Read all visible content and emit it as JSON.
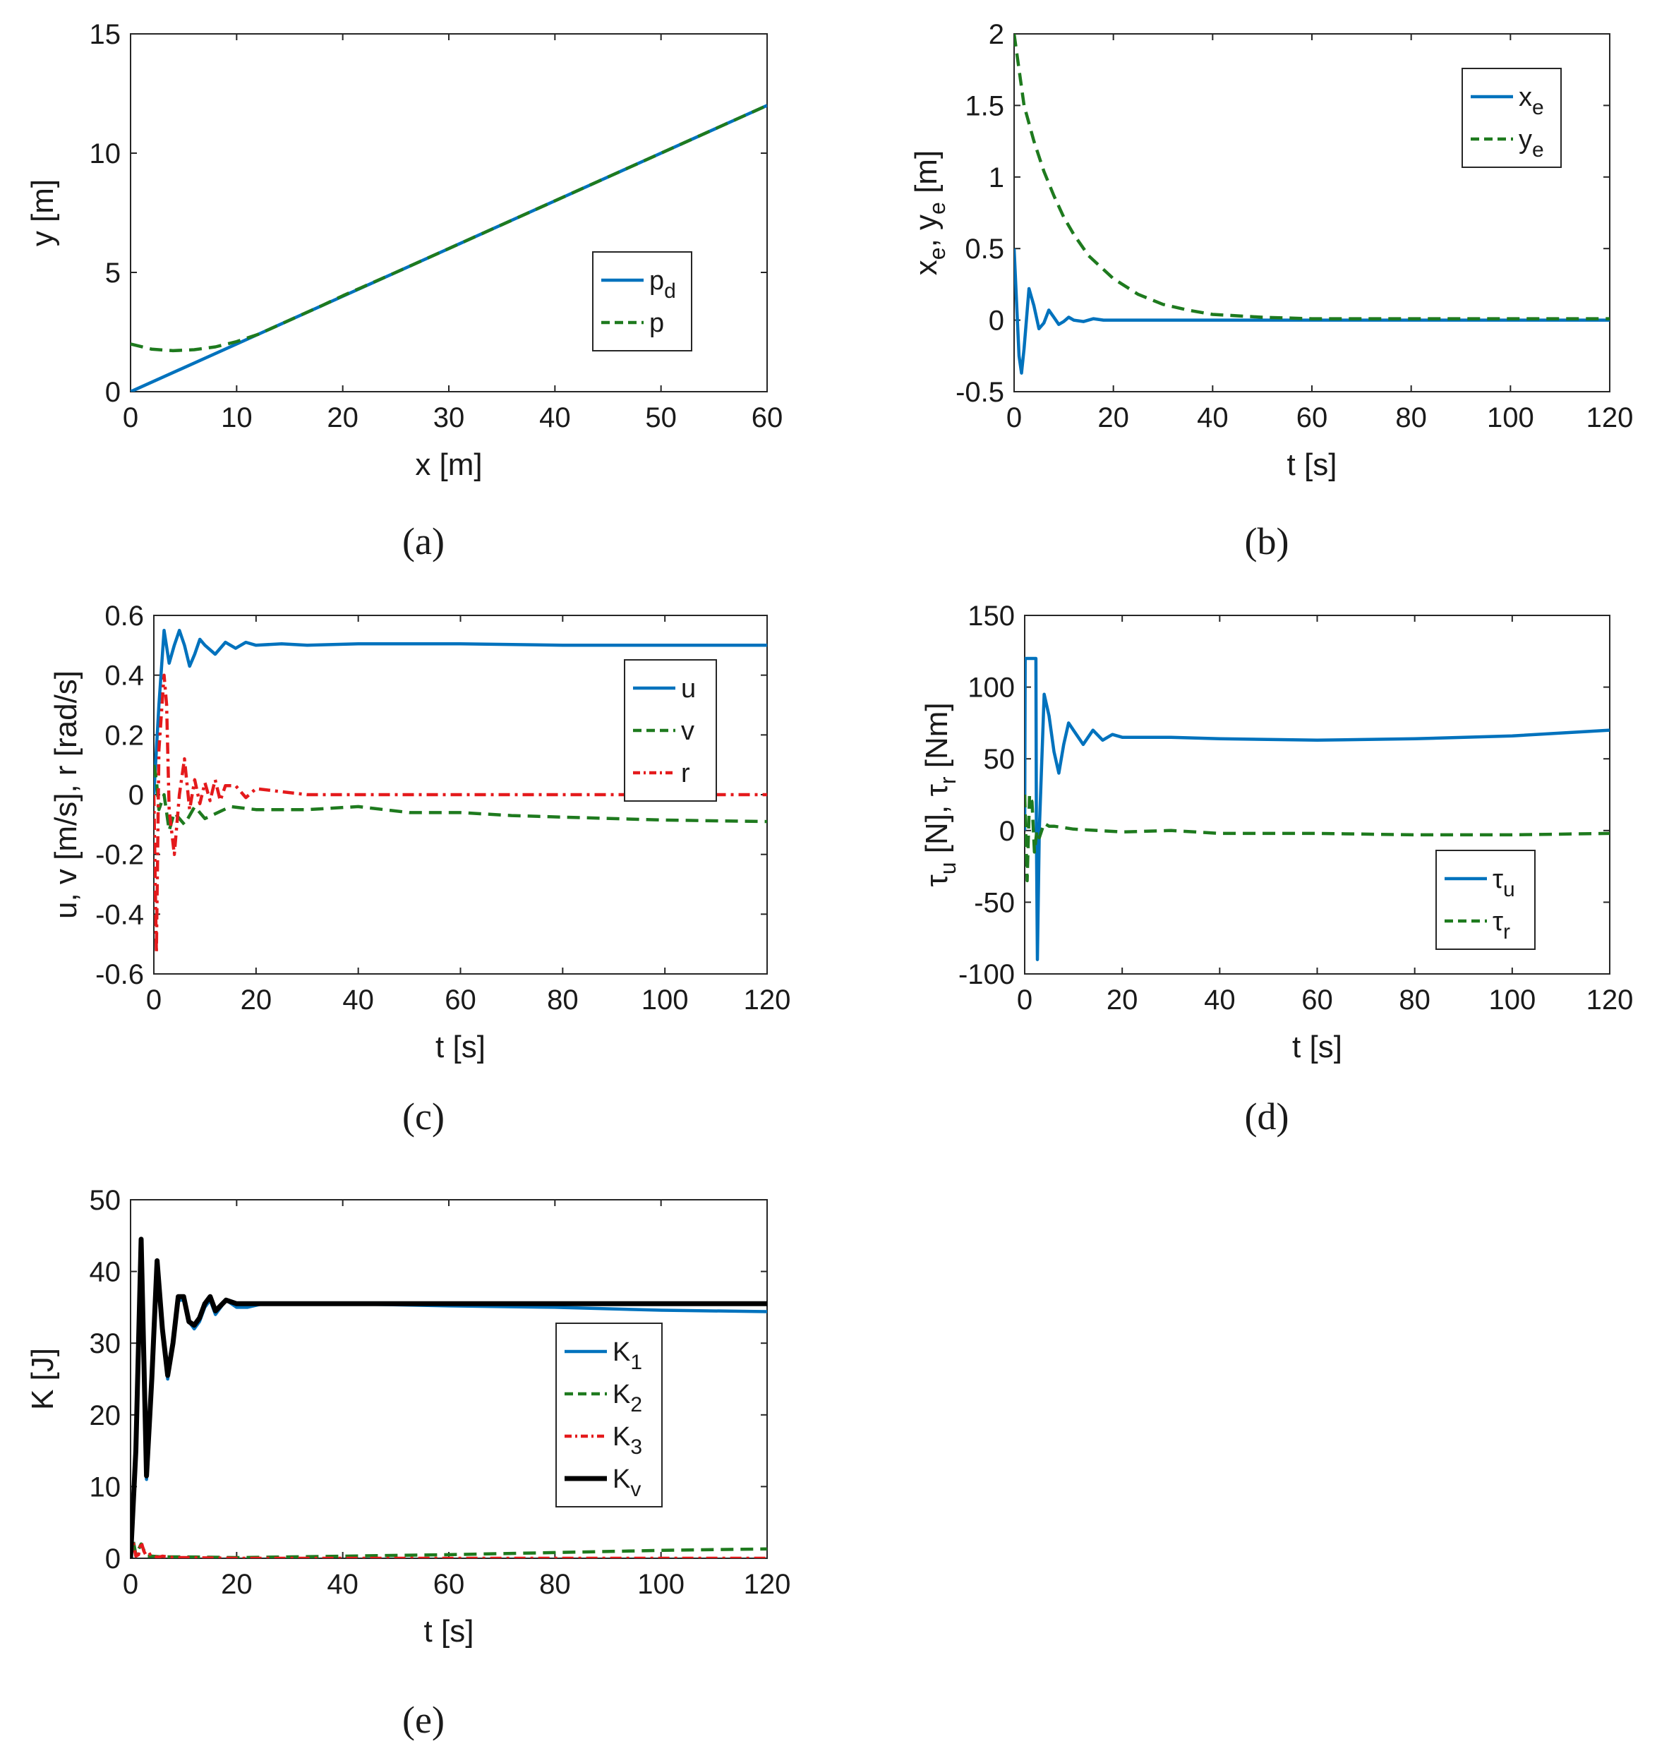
{
  "colors": {
    "blue": "#0072BD",
    "green": "#1E7A1E",
    "red": "#E41A1C",
    "black": "#000000",
    "axis": "#262626"
  },
  "chart_data": [
    {
      "id": "a",
      "type": "line",
      "caption": "(a)",
      "xlabel": "x [m]",
      "ylabel": "y [m]",
      "xlim": [
        0,
        60
      ],
      "ylim": [
        0,
        15
      ],
      "xticks": [
        0,
        10,
        20,
        30,
        40,
        50,
        60
      ],
      "yticks": [
        0,
        5,
        10,
        15
      ],
      "legend_position": "center-right",
      "series": [
        {
          "name": "p",
          "sub": "d",
          "style": "solid",
          "color": "blue",
          "x": [
            0,
            60
          ],
          "y": [
            0,
            12
          ]
        },
        {
          "name": "p",
          "sub": "",
          "style": "dashed",
          "color": "green",
          "x": [
            0,
            2,
            4,
            6,
            8,
            10,
            12,
            14,
            16,
            18,
            20,
            25,
            30,
            40,
            50,
            60
          ],
          "y": [
            2.0,
            1.78,
            1.72,
            1.76,
            1.88,
            2.1,
            2.4,
            2.8,
            3.2,
            3.6,
            4.02,
            5.0,
            6.0,
            8.0,
            10.0,
            12.0
          ]
        }
      ]
    },
    {
      "id": "b",
      "type": "line",
      "caption": "(b)",
      "xlabel": "t [s]",
      "ylabel": "x",
      "ylabel_sub": "e",
      "ylabel_mid": ", y",
      "ylabel_sub2": "e",
      "ylabel_tail": " [m]",
      "xlim": [
        0,
        120
      ],
      "ylim": [
        -0.5,
        2
      ],
      "xticks": [
        0,
        20,
        40,
        60,
        80,
        100,
        120
      ],
      "yticks": [
        -0.5,
        0,
        0.5,
        1,
        1.5,
        2
      ],
      "legend_position": "top-right",
      "series": [
        {
          "name": "x",
          "sub": "e",
          "style": "solid",
          "color": "blue",
          "x": [
            0,
            1,
            1.5,
            2,
            3,
            4,
            5,
            6,
            7,
            8,
            9,
            10,
            11,
            12,
            14,
            16,
            18,
            20,
            25,
            120
          ],
          "y": [
            0.5,
            -0.25,
            -0.37,
            -0.2,
            0.22,
            0.1,
            -0.06,
            -0.02,
            0.07,
            0.02,
            -0.03,
            -0.01,
            0.02,
            0.0,
            -0.01,
            0.01,
            0.0,
            0.0,
            0.0,
            0.0
          ]
        },
        {
          "name": "y",
          "sub": "e",
          "style": "dashed",
          "color": "green",
          "x": [
            0,
            2,
            4,
            6,
            8,
            10,
            12,
            15,
            20,
            25,
            30,
            35,
            40,
            50,
            60,
            80,
            100,
            120
          ],
          "y": [
            2.0,
            1.5,
            1.25,
            1.04,
            0.87,
            0.72,
            0.6,
            0.45,
            0.29,
            0.18,
            0.11,
            0.07,
            0.04,
            0.02,
            0.01,
            0.01,
            0.01,
            0.01
          ]
        }
      ]
    },
    {
      "id": "c",
      "type": "line",
      "caption": "(c)",
      "xlabel": "t [s]",
      "ylabel": "u, v [m/s], r [rad/s]",
      "xlim": [
        0,
        120
      ],
      "ylim": [
        -0.6,
        0.6
      ],
      "xticks": [
        0,
        20,
        40,
        60,
        80,
        100,
        120
      ],
      "yticks": [
        -0.6,
        -0.4,
        -0.2,
        0,
        0.2,
        0.4,
        0.6
      ],
      "legend_position": "upper-right",
      "series": [
        {
          "name": "u",
          "sub": "",
          "style": "solid",
          "color": "blue",
          "x": [
            0,
            1,
            2,
            3,
            4,
            5,
            6,
            7,
            8,
            9,
            10,
            12,
            14,
            16,
            18,
            20,
            25,
            30,
            40,
            60,
            80,
            100,
            120
          ],
          "y": [
            0.0,
            0.3,
            0.55,
            0.44,
            0.5,
            0.55,
            0.5,
            0.43,
            0.47,
            0.52,
            0.5,
            0.47,
            0.51,
            0.49,
            0.51,
            0.5,
            0.505,
            0.5,
            0.505,
            0.505,
            0.5,
            0.5,
            0.5
          ]
        },
        {
          "name": "v",
          "sub": "",
          "style": "dashed",
          "color": "green",
          "x": [
            0,
            0.5,
            1,
            2,
            3,
            4,
            6,
            8,
            10,
            15,
            20,
            30,
            40,
            50,
            60,
            70,
            80,
            100,
            120
          ],
          "y": [
            0.1,
            0.05,
            -0.05,
            0.0,
            -0.12,
            -0.06,
            -0.1,
            -0.04,
            -0.08,
            -0.04,
            -0.05,
            -0.05,
            -0.04,
            -0.06,
            -0.06,
            -0.07,
            -0.075,
            -0.085,
            -0.09
          ]
        },
        {
          "name": "r",
          "sub": "",
          "style": "dashdot",
          "color": "red",
          "x": [
            0,
            0.5,
            1,
            2,
            2.5,
            3,
            4,
            5,
            6,
            7,
            8,
            9,
            10,
            11,
            12,
            13,
            14,
            16,
            18,
            20,
            25,
            30,
            40,
            50,
            60,
            80,
            100,
            120
          ],
          "y": [
            0.0,
            -0.53,
            0.15,
            0.4,
            0.3,
            -0.05,
            -0.2,
            0.0,
            0.12,
            -0.05,
            0.05,
            -0.03,
            0.04,
            -0.02,
            0.05,
            -0.02,
            0.03,
            0.03,
            -0.01,
            0.02,
            0.01,
            0.0,
            0.0,
            0.0,
            0.0,
            0.0,
            0.0,
            0.0
          ]
        }
      ]
    },
    {
      "id": "d",
      "type": "line",
      "caption": "(d)",
      "xlabel": "t [s]",
      "ylabel": "τ",
      "ylabel_sub": "u",
      "ylabel_mid": " [N], τ",
      "ylabel_sub2": "r",
      "ylabel_tail": " [Nm]",
      "xlim": [
        0,
        120
      ],
      "ylim": [
        -100,
        150
      ],
      "xticks": [
        0,
        20,
        40,
        60,
        80,
        100,
        120
      ],
      "yticks": [
        -100,
        -50,
        0,
        50,
        100,
        150
      ],
      "legend_position": "lower-right",
      "series": [
        {
          "name": "τ",
          "sub": "u",
          "style": "solid",
          "color": "blue",
          "x": [
            0,
            0.1,
            2.3,
            2.4,
            2.6,
            3,
            4,
            5,
            6,
            7,
            8,
            9,
            10,
            12,
            14,
            16,
            18,
            20,
            30,
            40,
            60,
            80,
            100,
            120
          ],
          "y": [
            0,
            120,
            120,
            0,
            -90,
            0,
            95,
            80,
            55,
            40,
            60,
            75,
            70,
            60,
            70,
            63,
            67,
            65,
            65,
            64,
            63,
            64,
            66,
            70
          ]
        },
        {
          "name": "τ",
          "sub": "r",
          "style": "dashed",
          "color": "green",
          "x": [
            0,
            0.5,
            1,
            1.5,
            2,
            2.5,
            3,
            4,
            5,
            6,
            8,
            10,
            15,
            20,
            30,
            40,
            60,
            80,
            100,
            120
          ],
          "y": [
            25,
            -35,
            25,
            20,
            -15,
            0,
            -5,
            5,
            3,
            3,
            2,
            1,
            0,
            -1,
            0,
            -2,
            -2,
            -3,
            -3,
            -2
          ]
        }
      ]
    },
    {
      "id": "e",
      "type": "line",
      "caption": "(e)",
      "xlabel": "t [s]",
      "ylabel": "K [J]",
      "xlim": [
        0,
        120
      ],
      "ylim": [
        0,
        50
      ],
      "xticks": [
        0,
        20,
        40,
        60,
        80,
        100,
        120
      ],
      "yticks": [
        0,
        10,
        20,
        30,
        40,
        50
      ],
      "legend_position": "center-right",
      "series": [
        {
          "name": "K",
          "sub": "1",
          "style": "solid",
          "color": "blue",
          "x": [
            0,
            1,
            2,
            3,
            4,
            5,
            6,
            7,
            8,
            9,
            10,
            11,
            12,
            13,
            14,
            15,
            16,
            18,
            20,
            22,
            25,
            30,
            40,
            60,
            80,
            100,
            120
          ],
          "y": [
            0,
            15,
            44,
            11,
            25,
            41,
            32,
            25,
            30,
            36,
            36,
            33,
            32,
            33,
            35,
            36,
            34,
            36,
            35,
            35,
            35.5,
            35.5,
            35.5,
            35.2,
            35,
            34.6,
            34.4
          ]
        },
        {
          "name": "K",
          "sub": "2",
          "style": "dashed",
          "color": "green",
          "x": [
            0,
            0.5,
            1,
            2,
            3,
            4,
            6,
            10,
            20,
            40,
            60,
            80,
            100,
            120
          ],
          "y": [
            0,
            2.5,
            0.5,
            2.0,
            0.3,
            0.3,
            0.2,
            0.2,
            0.1,
            0.3,
            0.5,
            0.8,
            1.1,
            1.3
          ]
        },
        {
          "name": "K",
          "sub": "3",
          "style": "dashdot",
          "color": "red",
          "x": [
            0,
            0.5,
            1,
            1.5,
            2,
            2.5,
            3,
            4,
            5,
            6,
            8,
            10,
            20,
            60,
            120
          ],
          "y": [
            0,
            2.2,
            0.3,
            0.5,
            2.3,
            1.0,
            0.3,
            0.7,
            0.1,
            0.3,
            0.1,
            0.1,
            0.0,
            0.0,
            0.0
          ]
        },
        {
          "name": "K",
          "sub": "v",
          "style": "solid-thick",
          "color": "black",
          "x": [
            0,
            1,
            2,
            3,
            4,
            5,
            6,
            7,
            8,
            9,
            10,
            11,
            12,
            13,
            14,
            15,
            16,
            18,
            20,
            22,
            25,
            30,
            40,
            60,
            80,
            100,
            120
          ],
          "y": [
            0,
            15,
            44.5,
            11.5,
            25,
            41.5,
            32,
            25.5,
            30,
            36.5,
            36.5,
            33,
            32.5,
            33.5,
            35.5,
            36.5,
            34.5,
            36,
            35.5,
            35.5,
            35.5,
            35.5,
            35.5,
            35.5,
            35.5,
            35.5,
            35.5
          ]
        }
      ]
    }
  ]
}
